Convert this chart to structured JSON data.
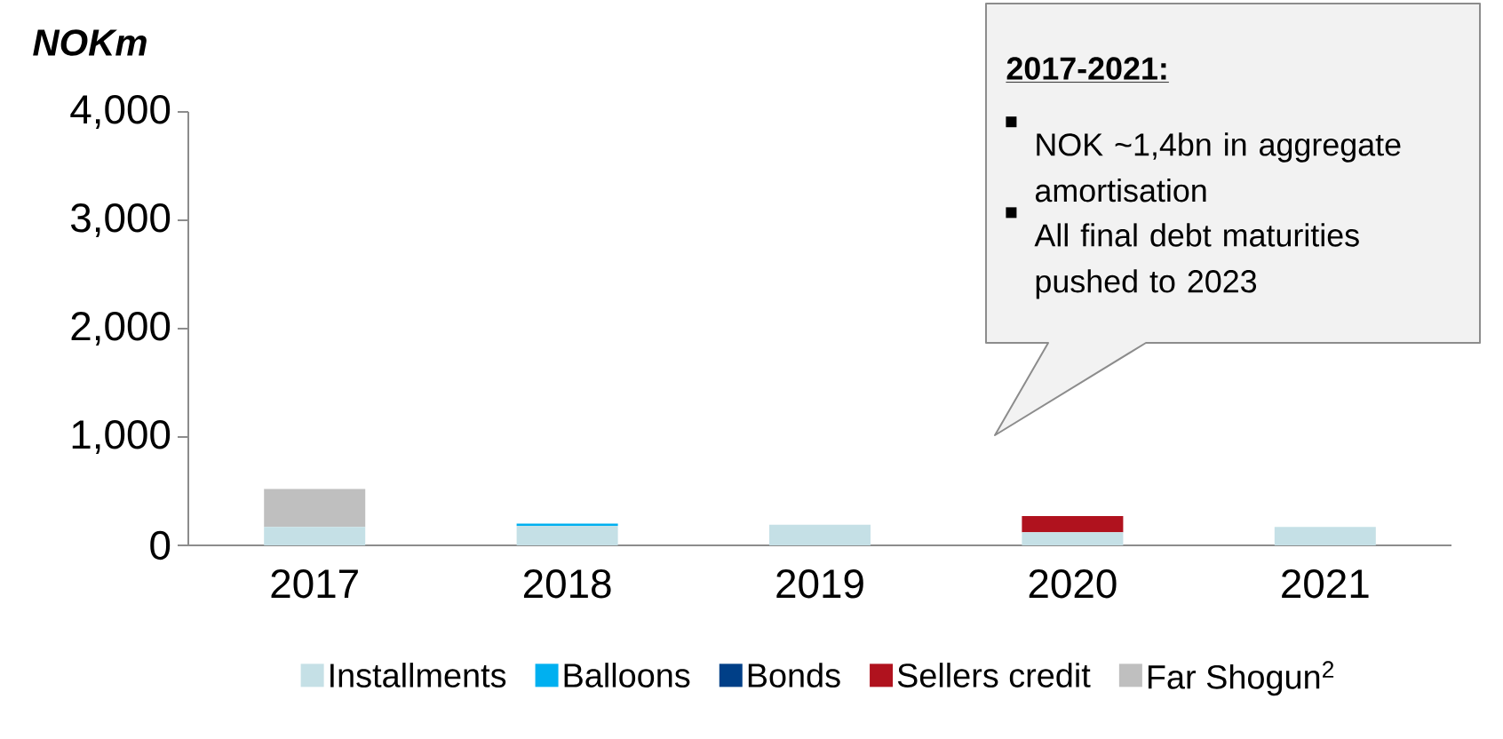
{
  "chart_data": {
    "type": "bar",
    "stacked": true,
    "ylabel": "NOKm",
    "categories": [
      "2017",
      "2018",
      "2019",
      "2020",
      "2021"
    ],
    "series": [
      {
        "name": "Installments",
        "color": "#c5e0e6",
        "values": [
          170,
          180,
          190,
          120,
          170
        ]
      },
      {
        "name": "Balloons",
        "color": "#00b0f0",
        "values": [
          0,
          20,
          0,
          0,
          0
        ]
      },
      {
        "name": "Bonds",
        "color": "#003f87",
        "values": [
          0,
          0,
          0,
          0,
          0
        ]
      },
      {
        "name": "Sellers credit",
        "color": "#b0121e",
        "values": [
          0,
          0,
          0,
          150,
          0
        ]
      },
      {
        "name": "Far Shogun$^{2}$",
        "color": "#bfbfbf",
        "values": [
          350,
          0,
          0,
          0,
          0
        ]
      }
    ],
    "ylim": [
      0,
      4000
    ],
    "yticks": [
      0,
      {
        "value": 1000,
        "label": "1,000"
      },
      {
        "value": 2000,
        "label": "2,000"
      },
      {
        "value": 3000,
        "label": "3,000"
      },
      {
        "value": 4000,
        "label": "4,000"
      }
    ],
    "legend": "bottom",
    "grid": false,
    "annotations": [
      "2017-2021:",
      "NOK ~1,4bn in aggregate amortisation",
      "All final debt maturities pushed to 2023"
    ]
  }
}
